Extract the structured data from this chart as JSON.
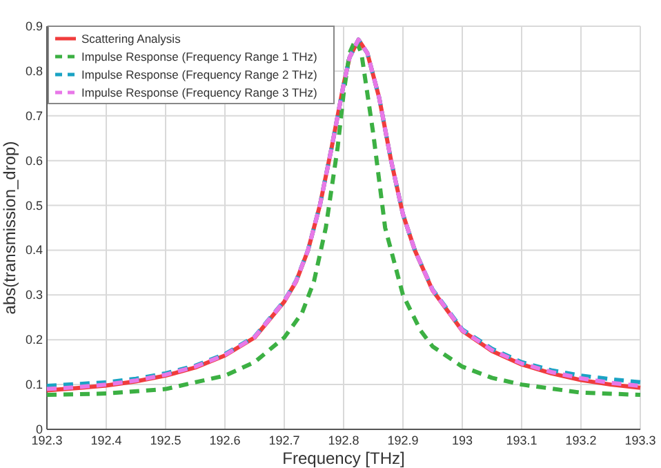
{
  "chart_data": {
    "type": "line",
    "xlabel": "Frequency [THz]",
    "ylabel": "abs(transmission_drop)",
    "xlim": [
      192.3,
      193.3
    ],
    "ylim": [
      0,
      0.9
    ],
    "xticks": [
      192.3,
      192.4,
      192.5,
      192.6,
      192.7,
      192.8,
      192.9,
      193,
      193.1,
      193.2,
      193.3
    ],
    "yticks": [
      0,
      0.1,
      0.2,
      0.3,
      0.4,
      0.5,
      0.6,
      0.7,
      0.8,
      0.9
    ],
    "grid": true,
    "legend": "top left",
    "marker": "none",
    "series": [
      {
        "name": "Scattering Analysis",
        "color": "#f03c3c",
        "line_style": "solid",
        "x": [
          192.3,
          192.35,
          192.4,
          192.45,
          192.5,
          192.55,
          192.6,
          192.65,
          192.7,
          192.72,
          192.74,
          192.76,
          192.78,
          192.8,
          192.81,
          192.825,
          192.84,
          192.86,
          192.88,
          192.9,
          192.92,
          192.95,
          193.0,
          193.05,
          193.1,
          193.15,
          193.2,
          193.25,
          193.3
        ],
        "values": [
          0.087,
          0.092,
          0.098,
          0.107,
          0.12,
          0.138,
          0.165,
          0.205,
          0.285,
          0.33,
          0.4,
          0.5,
          0.63,
          0.77,
          0.83,
          0.87,
          0.84,
          0.74,
          0.6,
          0.48,
          0.4,
          0.31,
          0.22,
          0.175,
          0.145,
          0.125,
          0.11,
          0.1,
          0.093
        ]
      },
      {
        "name": "Impulse Response (Frequency Range 1 THz)",
        "color": "#3cb043",
        "line_style": "dashed",
        "x": [
          192.3,
          192.4,
          192.5,
          192.6,
          192.65,
          192.7,
          192.73,
          192.75,
          192.77,
          192.79,
          192.8,
          192.81,
          192.82,
          192.83,
          192.85,
          192.87,
          192.9,
          192.93,
          192.95,
          193.0,
          193.05,
          193.1,
          193.2,
          193.3
        ],
        "values": [
          0.077,
          0.08,
          0.09,
          0.12,
          0.15,
          0.205,
          0.26,
          0.33,
          0.45,
          0.63,
          0.75,
          0.84,
          0.87,
          0.84,
          0.66,
          0.45,
          0.3,
          0.22,
          0.185,
          0.14,
          0.115,
          0.1,
          0.082,
          0.077
        ]
      },
      {
        "name": "Impulse Response (Frequency Range 2 THz)",
        "color": "#1aa3c4",
        "line_style": "dashed",
        "x": [
          192.3,
          192.35,
          192.4,
          192.45,
          192.5,
          192.55,
          192.6,
          192.65,
          192.7,
          192.72,
          192.74,
          192.76,
          192.78,
          192.8,
          192.81,
          192.825,
          192.84,
          192.86,
          192.88,
          192.9,
          192.92,
          192.95,
          193.0,
          193.05,
          193.1,
          193.15,
          193.2,
          193.25,
          193.3
        ],
        "values": [
          0.097,
          0.101,
          0.105,
          0.113,
          0.125,
          0.142,
          0.168,
          0.207,
          0.287,
          0.332,
          0.4,
          0.5,
          0.63,
          0.77,
          0.83,
          0.87,
          0.84,
          0.74,
          0.6,
          0.48,
          0.4,
          0.312,
          0.223,
          0.18,
          0.15,
          0.132,
          0.12,
          0.112,
          0.105
        ]
      },
      {
        "name": "Impulse Response (Frequency Range 3 THz)",
        "color": "#e878e8",
        "line_style": "dashed",
        "x": [
          192.3,
          192.35,
          192.4,
          192.45,
          192.5,
          192.55,
          192.6,
          192.65,
          192.7,
          192.72,
          192.74,
          192.76,
          192.78,
          192.8,
          192.81,
          192.825,
          192.84,
          192.86,
          192.88,
          192.9,
          192.92,
          192.95,
          193.0,
          193.05,
          193.1,
          193.15,
          193.2,
          193.25,
          193.3
        ],
        "values": [
          0.09,
          0.094,
          0.1,
          0.109,
          0.122,
          0.14,
          0.166,
          0.206,
          0.286,
          0.331,
          0.4,
          0.5,
          0.63,
          0.77,
          0.83,
          0.87,
          0.84,
          0.74,
          0.6,
          0.48,
          0.4,
          0.311,
          0.221,
          0.177,
          0.147,
          0.128,
          0.114,
          0.104,
          0.097
        ]
      }
    ]
  }
}
